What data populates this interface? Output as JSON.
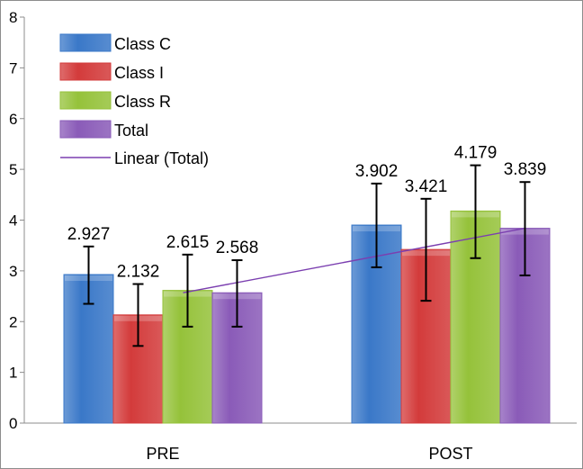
{
  "chart_data": {
    "type": "bar",
    "categories": [
      "PRE",
      "POST"
    ],
    "ylim": [
      0,
      8
    ],
    "yticks": [
      0,
      1,
      2,
      3,
      4,
      5,
      6,
      7,
      8
    ],
    "grid": false,
    "legend_position": "top-left",
    "series": [
      {
        "name": "Class C",
        "values": [
          2.927,
          3.902
        ],
        "error_low": [
          2.35,
          3.07
        ],
        "error_high": [
          3.48,
          4.72
        ],
        "labels": [
          "2.927",
          "3.902"
        ],
        "color": "#3a78c8"
      },
      {
        "name": "Class I",
        "values": [
          2.132,
          3.421
        ],
        "error_low": [
          1.52,
          2.41
        ],
        "error_high": [
          2.74,
          4.42
        ],
        "labels": [
          "2.132",
          "3.421"
        ],
        "color": "#d33b3b"
      },
      {
        "name": "Class R",
        "values": [
          2.615,
          4.179
        ],
        "error_low": [
          1.9,
          3.25
        ],
        "error_high": [
          3.32,
          5.08
        ],
        "labels": [
          "2.615",
          "4.179"
        ],
        "color": "#95c23a"
      },
      {
        "name": "Total",
        "values": [
          2.568,
          3.839
        ],
        "error_low": [
          1.9,
          2.91
        ],
        "error_high": [
          3.21,
          4.75
        ],
        "labels": [
          "2.568",
          "3.839"
        ],
        "color": "#8a5bb8"
      }
    ],
    "trendline": {
      "name": "Linear (Total)",
      "values": [
        2.568,
        3.839
      ],
      "color": "#7b3fb0"
    }
  }
}
